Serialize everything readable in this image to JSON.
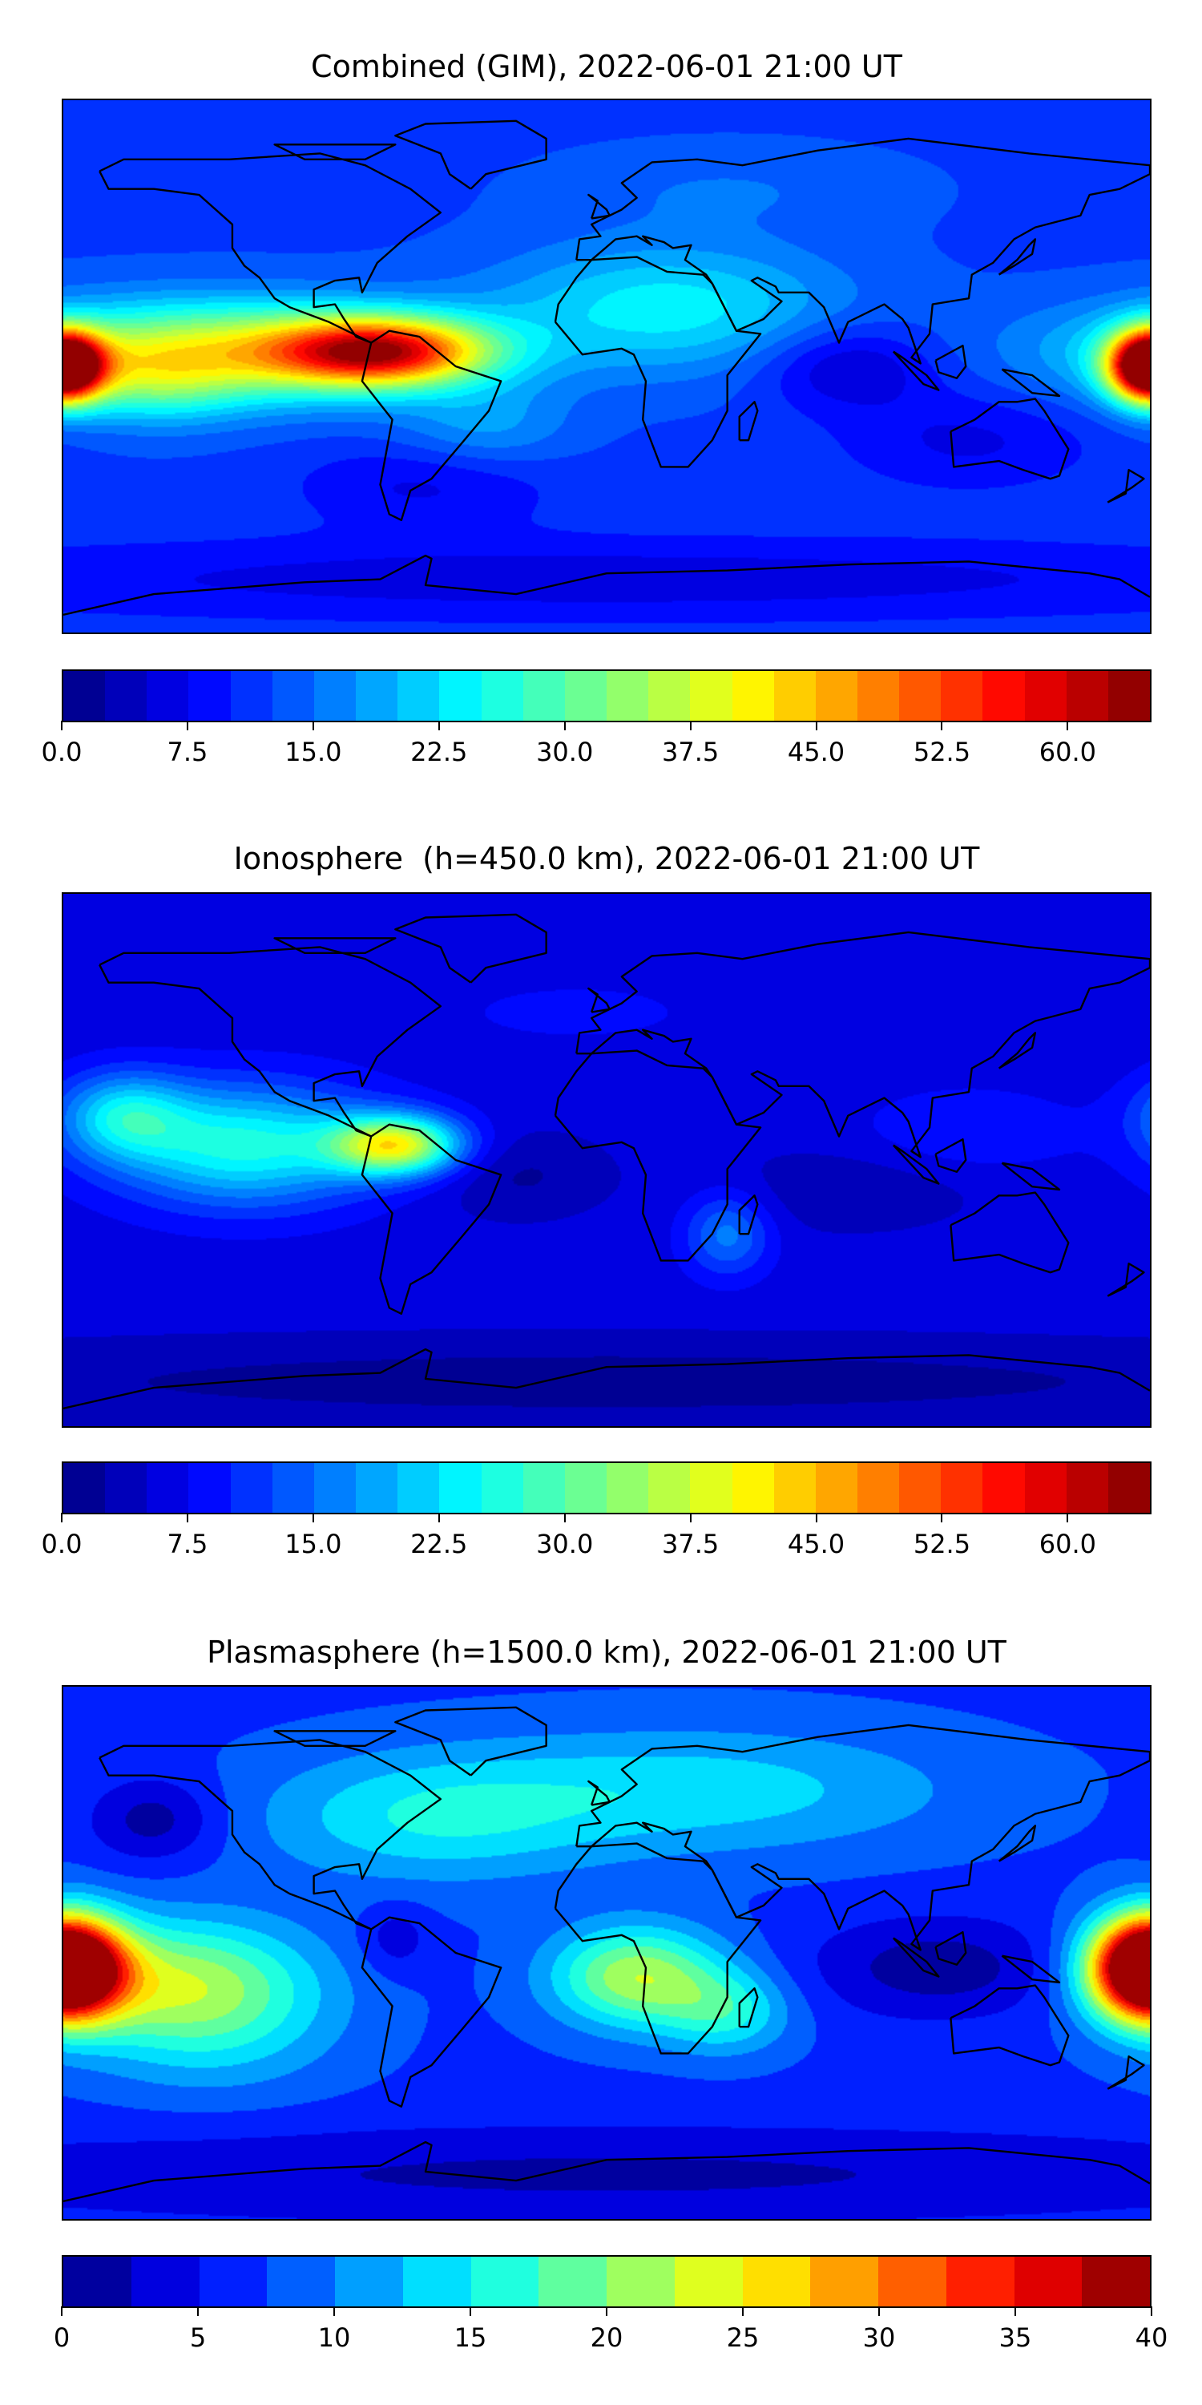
{
  "colormap": "jet",
  "chart_data": [
    {
      "type": "heatmap",
      "title": "Combined (GIM), 2022-06-01 21:00 UT",
      "projection": "equirectangular world map with coastlines",
      "colorbar": {
        "min": 0,
        "max": 65,
        "step": 2.5,
        "ticks": [
          0,
          7.5,
          15,
          22.5,
          30,
          37.5,
          45,
          52.5,
          60
        ],
        "tick_labels": [
          "0.0",
          "7.5",
          "15.0",
          "22.5",
          "30.0",
          "37.5",
          "45.0",
          "52.5",
          "60.0"
        ]
      }
    },
    {
      "type": "heatmap",
      "title": "Ionosphere  (h=450.0 km), 2022-06-01 21:00 UT",
      "projection": "equirectangular world map with coastlines",
      "colorbar": {
        "min": 0,
        "max": 65,
        "step": 2.5,
        "ticks": [
          0,
          7.5,
          15,
          22.5,
          30,
          37.5,
          45,
          52.5,
          60
        ],
        "tick_labels": [
          "0.0",
          "7.5",
          "15.0",
          "22.5",
          "30.0",
          "37.5",
          "45.0",
          "52.5",
          "60.0"
        ]
      }
    },
    {
      "type": "heatmap",
      "title": "Plasmasphere (h=1500.0 km), 2022-06-01 21:00 UT",
      "projection": "equirectangular world map with coastlines",
      "colorbar": {
        "min": 0,
        "max": 40,
        "step": 2.5,
        "ticks": [
          0,
          5,
          10,
          15,
          20,
          25,
          30,
          35,
          40
        ],
        "tick_labels": [
          "0",
          "5",
          "10",
          "15",
          "20",
          "25",
          "30",
          "35",
          "40"
        ]
      }
    }
  ]
}
